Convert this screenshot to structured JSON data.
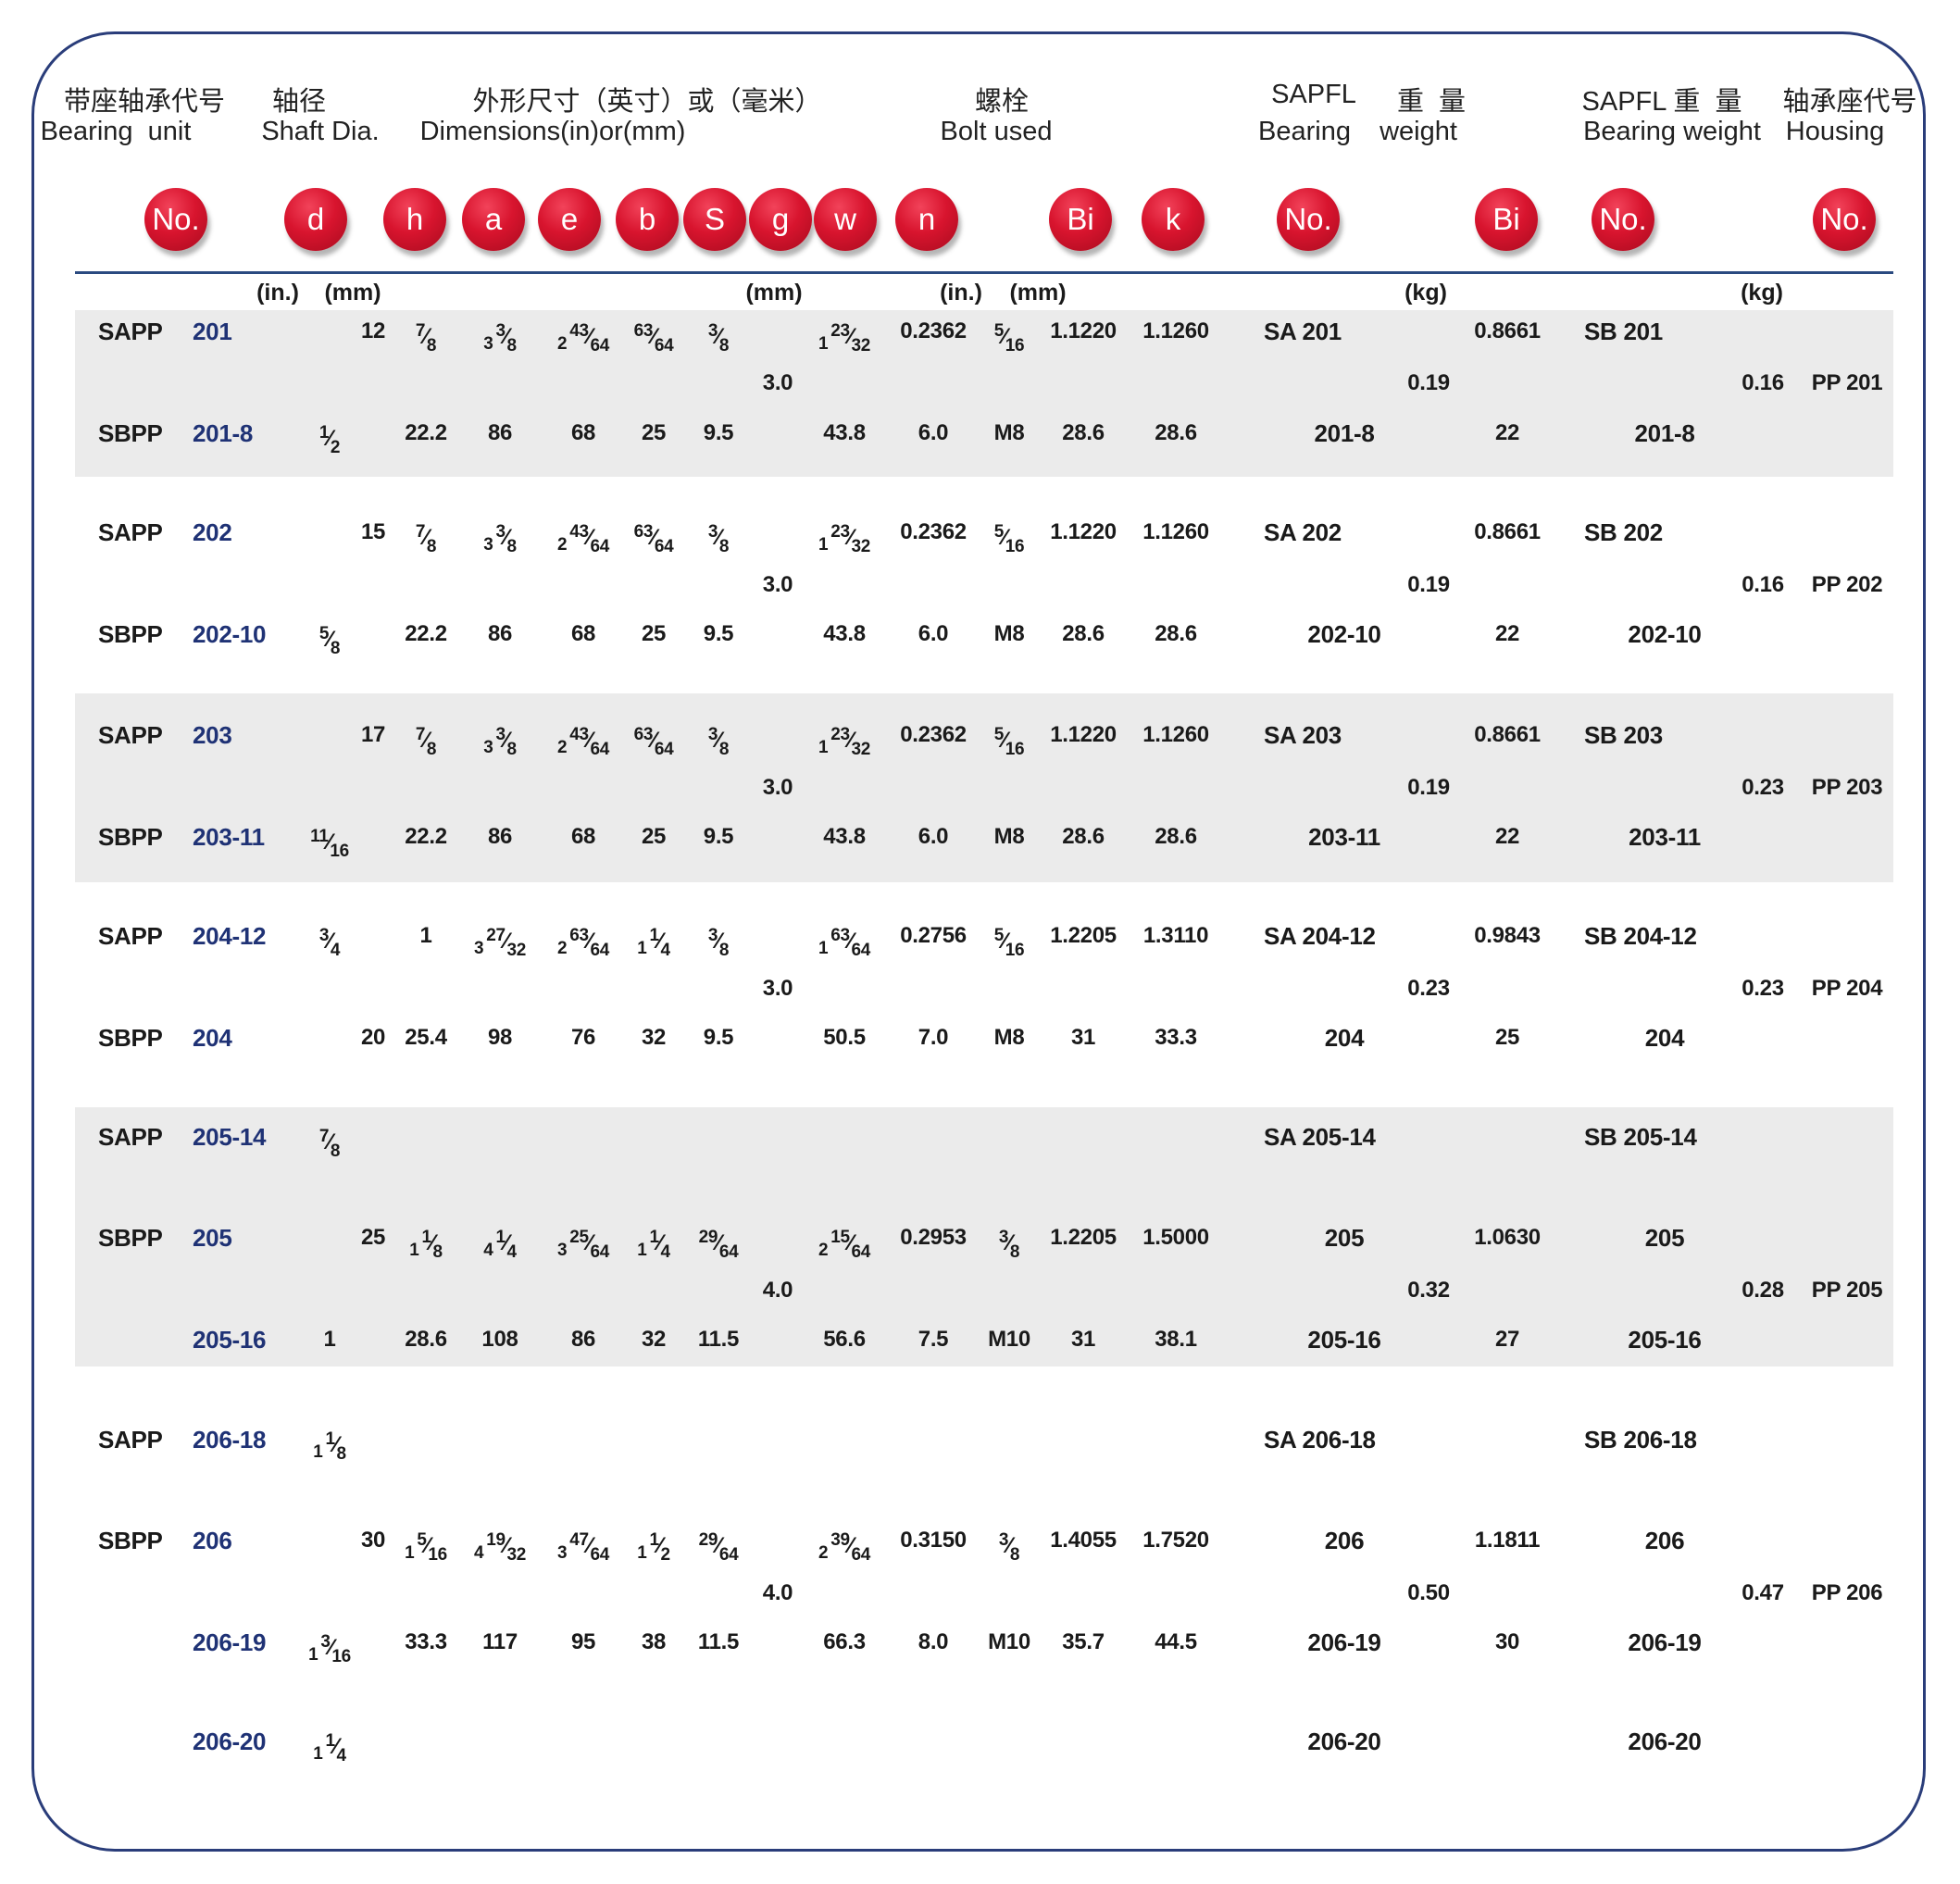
{
  "header": {
    "unit_cn": "带座轴承代号",
    "unit_en": "Bearing  unit",
    "shaft_cn": "轴径",
    "shaft_en": "Shaft Dia.",
    "dim_cn": "外形尺寸（英寸）或（毫米）",
    "dim_en": "Dimensions(in)or(mm)",
    "bolt_cn": "螺栓",
    "bolt_en": "Bolt used",
    "sa_cn_1": "SAPFL",
    "sa_cn_2": "重  量",
    "sa_en_1": "Bearing",
    "sa_en_2": "weight",
    "sb_cn": "SAPFL 重  量",
    "housing_cn": "轴承座代号",
    "sb_en": "Bearing weight",
    "housing_en": "Housing"
  },
  "symbols": [
    "No.",
    "d",
    "h",
    "a",
    "e",
    "b",
    "S",
    "g",
    "w",
    "n",
    "Bi",
    "k",
    "No.",
    "Bi",
    "No.",
    "No."
  ],
  "units": [
    "(in.)",
    "(mm)",
    "(mm)",
    "(in.)",
    "(mm)",
    "(kg)",
    "(kg)"
  ],
  "colors": {
    "frame": "#2a3d7a",
    "ball": "#d8142e",
    "model_no": "#1f3275",
    "band": "#ebebeb"
  },
  "groups": [
    [
      {
        "series": "SAPP",
        "no": "201",
        "d_mm": "12",
        "h": "7/8",
        "a": "3 3/8",
        "e": "2 43/64",
        "b": "63/64",
        "s": "3/8",
        "w": "1 23/32",
        "n": "0.2362",
        "bolt": "5/16",
        "bi": "1.1220",
        "k": "1.1260",
        "sa_no": "SA 201",
        "sa_bi": "0.8661",
        "sb_no": "SB 201"
      },
      {
        "g": "3.0",
        "sa_wt": "0.19",
        "sb_wt": "0.16",
        "housing": "PP 201"
      },
      {
        "series": "SBPP",
        "no": "201-8",
        "d_in": "1/2",
        "h": "22.2",
        "a": "86",
        "e": "68",
        "b": "25",
        "s": "9.5",
        "w": "43.8",
        "n": "6.0",
        "bolt": "M8",
        "bi": "28.6",
        "k": "28.6",
        "sa_no": "201-8",
        "sa_bi": "22",
        "sb_no": "201-8"
      }
    ],
    [
      {
        "series": "SAPP",
        "no": "202",
        "d_mm": "15",
        "h": "7/8",
        "a": "3 3/8",
        "e": "2 43/64",
        "b": "63/64",
        "s": "3/8",
        "w": "1 23/32",
        "n": "0.2362",
        "bolt": "5/16",
        "bi": "1.1220",
        "k": "1.1260",
        "sa_no": "SA 202",
        "sa_bi": "0.8661",
        "sb_no": "SB 202"
      },
      {
        "g": "3.0",
        "sa_wt": "0.19",
        "sb_wt": "0.16",
        "housing": "PP 202"
      },
      {
        "series": "SBPP",
        "no": "202-10",
        "d_in": "5/8",
        "h": "22.2",
        "a": "86",
        "e": "68",
        "b": "25",
        "s": "9.5",
        "w": "43.8",
        "n": "6.0",
        "bolt": "M8",
        "bi": "28.6",
        "k": "28.6",
        "sa_no": "202-10",
        "sa_bi": "22",
        "sb_no": "202-10"
      }
    ],
    [
      {
        "series": "SAPP",
        "no": "203",
        "d_mm": "17",
        "h": "7/8",
        "a": "3 3/8",
        "e": "2 43/64",
        "b": "63/64",
        "s": "3/8",
        "w": "1 23/32",
        "n": "0.2362",
        "bolt": "5/16",
        "bi": "1.1220",
        "k": "1.1260",
        "sa_no": "SA 203",
        "sa_bi": "0.8661",
        "sb_no": "SB 203"
      },
      {
        "g": "3.0",
        "sa_wt": "0.19",
        "sb_wt": "0.23",
        "housing": "PP 203"
      },
      {
        "series": "SBPP",
        "no": "203-11",
        "d_in": "11/16",
        "h": "22.2",
        "a": "86",
        "e": "68",
        "b": "25",
        "s": "9.5",
        "w": "43.8",
        "n": "6.0",
        "bolt": "M8",
        "bi": "28.6",
        "k": "28.6",
        "sa_no": "203-11",
        "sa_bi": "22",
        "sb_no": "203-11"
      }
    ],
    [
      {
        "series": "SAPP",
        "no": "204-12",
        "d_in": "3/4",
        "h": "1",
        "a": "3 27/32",
        "e": "2 63/64",
        "b": "1 1/4",
        "s": "3/8",
        "w": "1 63/64",
        "n": "0.2756",
        "bolt": "5/16",
        "bi": "1.2205",
        "k": "1.3110",
        "sa_no": "SA 204-12",
        "sa_bi": "0.9843",
        "sb_no": "SB 204-12"
      },
      {
        "g": "3.0",
        "sa_wt": "0.23",
        "sb_wt": "0.23",
        "housing": "PP 204"
      },
      {
        "series": "SBPP",
        "no": "204",
        "d_mm": "20",
        "h": "25.4",
        "a": "98",
        "e": "76",
        "b": "32",
        "s": "9.5",
        "w": "50.5",
        "n": "7.0",
        "bolt": "M8",
        "bi": "31",
        "k": "33.3",
        "sa_no": "204",
        "sa_bi": "25",
        "sb_no": "204"
      }
    ],
    [
      {
        "series": "SAPP",
        "no": "205-14",
        "d_in": "7/8",
        "sa_no": "SA 205-14",
        "sb_no": "SB 205-14"
      },
      {
        "series": "SBPP",
        "no": "205",
        "d_mm": "25",
        "h": "1 1/8",
        "a": "4 1/4",
        "e": "3 25/64",
        "b": "1 1/4",
        "s": "29/64",
        "w": "2 15/64",
        "n": "0.2953",
        "bolt": "3/8",
        "bi": "1.2205",
        "k": "1.5000",
        "sa_no": "205",
        "sa_bi": "1.0630",
        "sb_no": "205"
      },
      {
        "g": "4.0",
        "sa_wt": "0.32",
        "sb_wt": "0.28",
        "housing": "PP 205"
      },
      {
        "no": "205-16",
        "d_in": "1",
        "h": "28.6",
        "a": "108",
        "e": "86",
        "b": "32",
        "s": "11.5",
        "w": "56.6",
        "n": "7.5",
        "bolt": "M10",
        "bi": "31",
        "k": "38.1",
        "sa_no": "205-16",
        "sa_bi": "27",
        "sb_no": "205-16"
      }
    ],
    [
      {
        "series": "SAPP",
        "no": "206-18",
        "d_in": "1 1/8",
        "sa_no": "SA 206-18",
        "sb_no": "SB 206-18"
      },
      {
        "series": "SBPP",
        "no": "206",
        "d_mm": "30",
        "h": "1 5/16",
        "a": "4 19/32",
        "e": "3 47/64",
        "b": "1 1/2",
        "s": "29/64",
        "w": "2 39/64",
        "n": "0.3150",
        "bolt": "3/8",
        "bi": "1.4055",
        "k": "1.7520",
        "sa_no": "206",
        "sa_bi": "1.1811",
        "sb_no": "206"
      },
      {
        "g": "4.0",
        "sa_wt": "0.50",
        "sb_wt": "0.47",
        "housing": "PP 206"
      },
      {
        "no": "206-19",
        "d_in": "1 3/16",
        "h": "33.3",
        "a": "117",
        "e": "95",
        "b": "38",
        "s": "11.5",
        "w": "66.3",
        "n": "8.0",
        "bolt": "M10",
        "bi": "35.7",
        "k": "44.5",
        "sa_no": "206-19",
        "sa_bi": "30",
        "sb_no": "206-19"
      },
      {
        "no": "206-20",
        "d_in": "1 1/4",
        "sa_no": "206-20",
        "sb_no": "206-20"
      }
    ]
  ]
}
